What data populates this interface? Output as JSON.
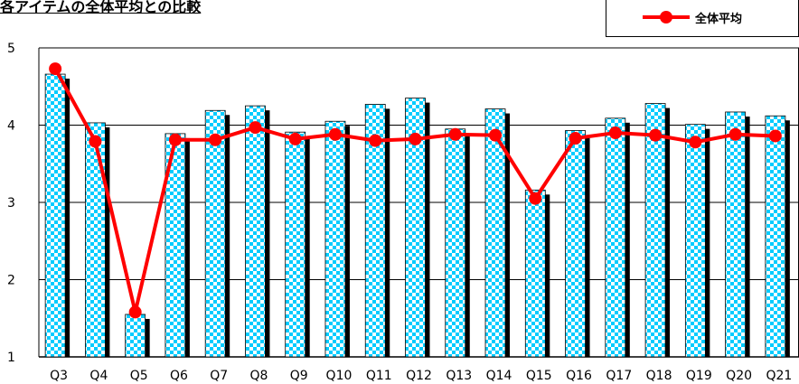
{
  "title": "各アイテムの全体平均との比較",
  "legend": {
    "label": "全体平均",
    "color": "#ff0000"
  },
  "chart_data": {
    "type": "bar",
    "title": "各アイテムの全体平均との比較",
    "categories": [
      "Q3",
      "Q4",
      "Q5",
      "Q6",
      "Q7",
      "Q8",
      "Q9",
      "Q10",
      "Q11",
      "Q12",
      "Q13",
      "Q14",
      "Q15",
      "Q16",
      "Q17",
      "Q18",
      "Q19",
      "Q20",
      "Q21"
    ],
    "series": [
      {
        "values": [
          4.66,
          4.03,
          1.55,
          3.89,
          4.19,
          4.25,
          3.91,
          4.05,
          4.27,
          4.35,
          3.95,
          4.21,
          3.16,
          3.93,
          4.09,
          4.28,
          4.01,
          4.17,
          4.12
        ],
        "style": "checkered",
        "colors": [
          "#00ccff",
          "#ffffff"
        ]
      },
      {
        "name": "全体平均",
        "type": "line",
        "color": "#ff0000",
        "values": [
          4.73,
          3.79,
          1.58,
          3.81,
          3.81,
          3.97,
          3.82,
          3.88,
          3.8,
          3.82,
          3.88,
          3.87,
          3.05,
          3.83,
          3.9,
          3.87,
          3.78,
          3.88,
          3.86
        ]
      }
    ],
    "ylim": [
      1,
      5
    ],
    "yticks": [
      "1",
      "2",
      "3",
      "4",
      "5"
    ],
    "grid": true,
    "legend_position": "top-right"
  }
}
